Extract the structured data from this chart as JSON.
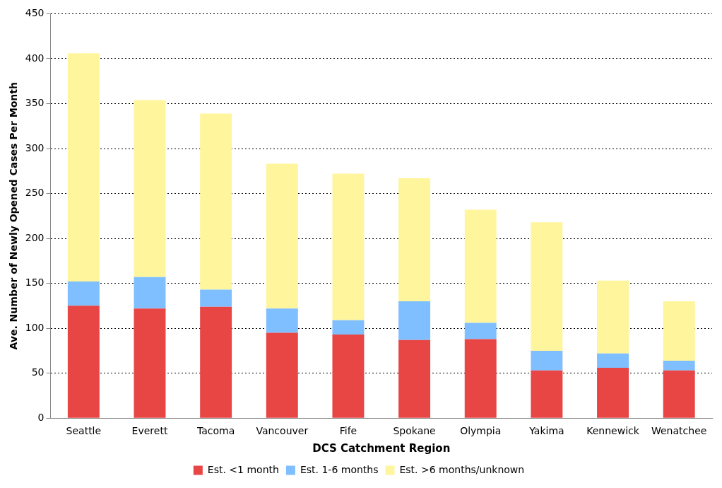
{
  "chart_data": {
    "type": "bar",
    "stacked": true,
    "xlabel": "DCS Catchment Region",
    "ylabel": "Ave. Number of Newly Opened Cases Per Month",
    "categories": [
      "Seattle",
      "Everett",
      "Tacoma",
      "Vancouver",
      "Fife",
      "Spokane",
      "Olympia",
      "Yakima",
      "Kennewick",
      "Wenatchee"
    ],
    "series": [
      {
        "name": "Est. <1 month",
        "color": "#e84545",
        "values": [
          125,
          122,
          124,
          95,
          93,
          87,
          88,
          53,
          56,
          53
        ]
      },
      {
        "name": "Est. 1-6 months",
        "color": "#7fbfff",
        "values": [
          27,
          35,
          19,
          27,
          16,
          43,
          18,
          22,
          16,
          11
        ]
      },
      {
        "name": "Est. >6 months/unknown",
        "color": "#fff59d",
        "values": [
          254,
          197,
          196,
          161,
          163,
          137,
          126,
          143,
          81,
          66
        ]
      }
    ],
    "ylim": [
      0,
      450
    ],
    "yticks": [
      0,
      50,
      100,
      150,
      200,
      250,
      300,
      350,
      400,
      450
    ],
    "grid": "y",
    "legend": "bottom"
  }
}
